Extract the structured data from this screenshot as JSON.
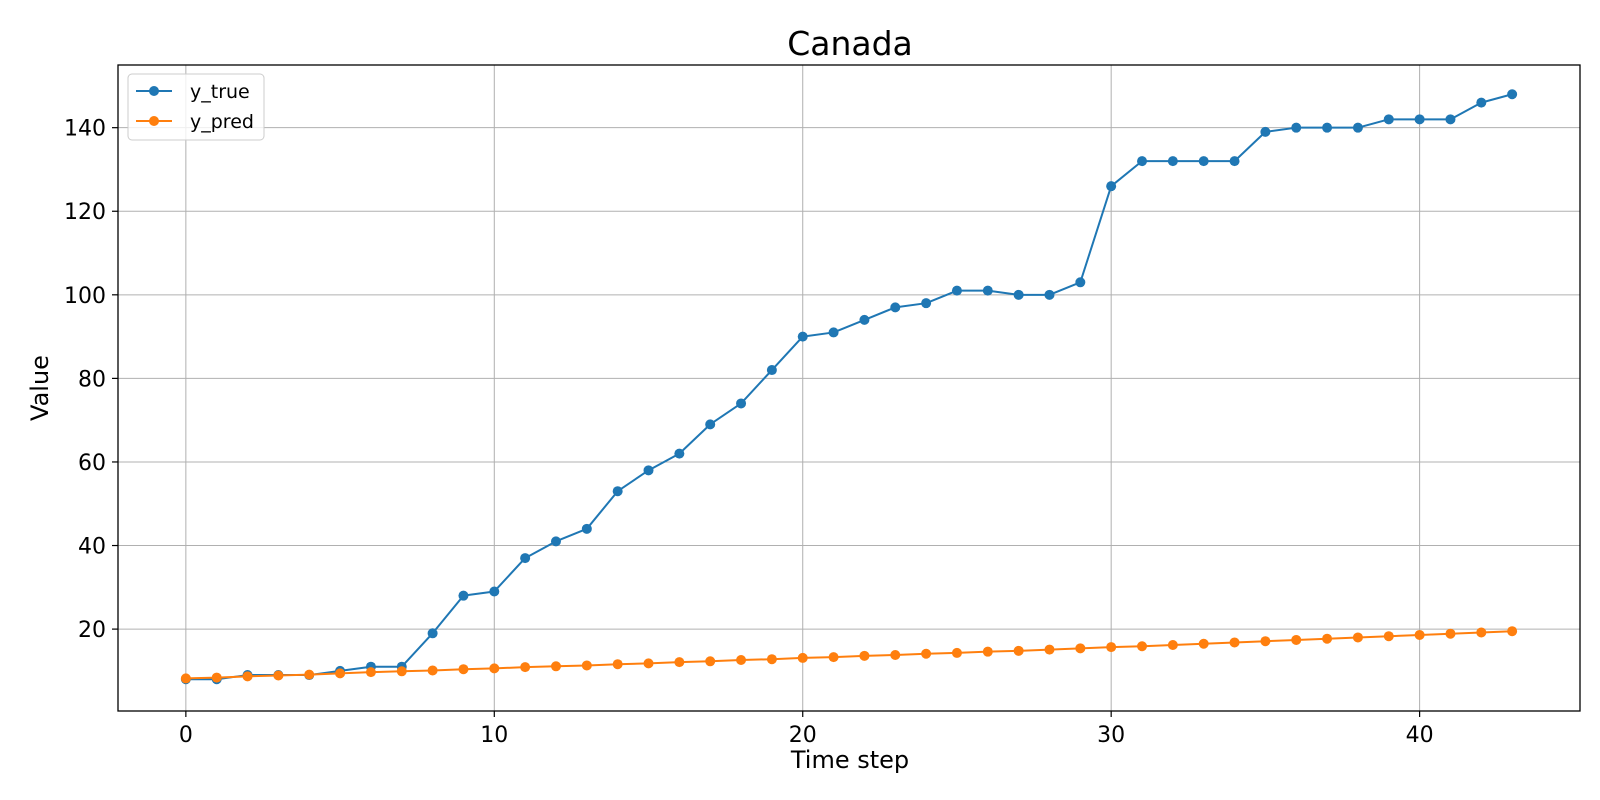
{
  "chart_data": {
    "type": "line",
    "title": "Canada",
    "xlabel": "Time step",
    "ylabel": "Value",
    "xlim": [
      -2.2,
      45.2
    ],
    "ylim": [
      0.4,
      155.0
    ],
    "xticks": [
      0,
      10,
      20,
      30,
      40
    ],
    "yticks": [
      20,
      40,
      60,
      80,
      100,
      120,
      140
    ],
    "grid": true,
    "legend_position": "upper-left",
    "x": [
      0,
      1,
      2,
      3,
      4,
      5,
      6,
      7,
      8,
      9,
      10,
      11,
      12,
      13,
      14,
      15,
      16,
      17,
      18,
      19,
      20,
      21,
      22,
      23,
      24,
      25,
      26,
      27,
      28,
      29,
      30,
      31,
      32,
      33,
      34,
      35,
      36,
      37,
      38,
      39,
      40,
      41,
      42,
      43
    ],
    "series": [
      {
        "name": "y_true",
        "color": "#1f77b4",
        "marker": "circle",
        "values": [
          8,
          8,
          9,
          9,
          9,
          10,
          11,
          11,
          19,
          28,
          29,
          37,
          41,
          44,
          53,
          58,
          62,
          69,
          74,
          82,
          90,
          91,
          94,
          97,
          98,
          101,
          101,
          100,
          100,
          103,
          126,
          132,
          132,
          132,
          132,
          139,
          140,
          140,
          140,
          142,
          142,
          142,
          146,
          148
        ]
      },
      {
        "name": "y_pred",
        "color": "#ff7f0e",
        "marker": "circle",
        "values": [
          8.2,
          8.4,
          8.7,
          8.9,
          9.1,
          9.4,
          9.7,
          9.9,
          10.1,
          10.4,
          10.6,
          10.9,
          11.1,
          11.3,
          11.6,
          11.8,
          12.1,
          12.3,
          12.6,
          12.8,
          13.1,
          13.3,
          13.6,
          13.8,
          14.1,
          14.3,
          14.6,
          14.8,
          15.1,
          15.4,
          15.7,
          15.9,
          16.2,
          16.5,
          16.8,
          17.1,
          17.4,
          17.7,
          18.0,
          18.3,
          18.6,
          18.9,
          19.2,
          19.5
        ]
      }
    ]
  }
}
